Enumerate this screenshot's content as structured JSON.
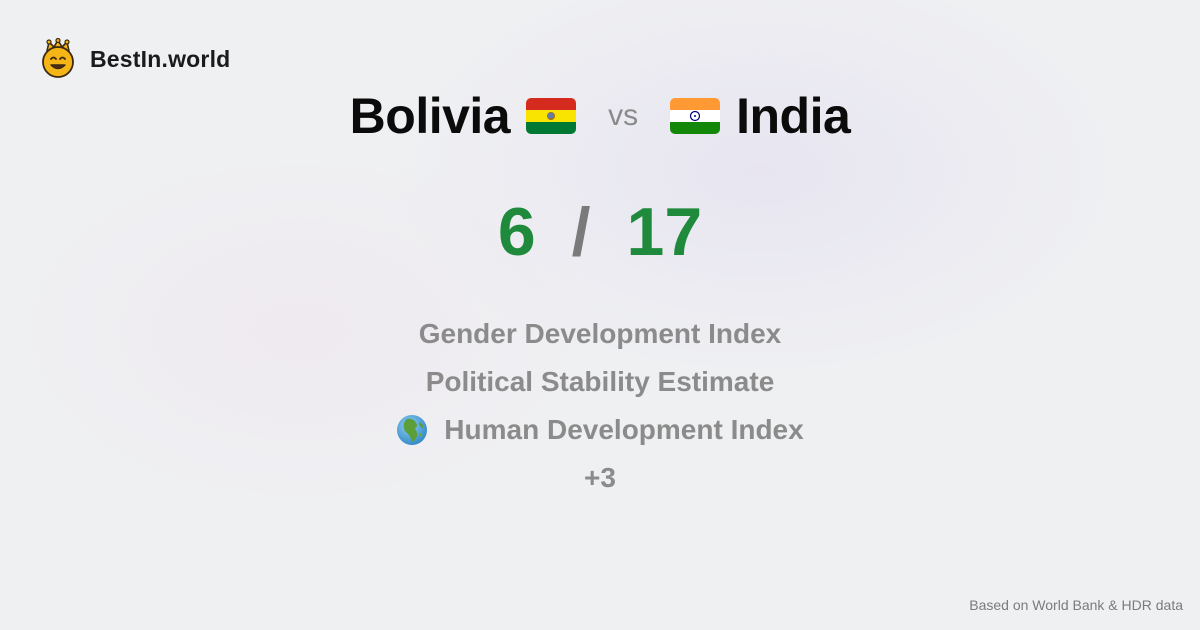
{
  "brand": {
    "name": "BestIn.world",
    "icon": "crowned-smiley-icon"
  },
  "comparison": {
    "left_country": "Bolivia",
    "left_flag": "bolivia-flag-icon",
    "vs_label": "vs",
    "right_country": "India",
    "right_flag": "india-flag-icon"
  },
  "score": {
    "left": "6",
    "separator": "/",
    "right": "17"
  },
  "metrics": {
    "items": [
      {
        "label": "Gender Development Index"
      },
      {
        "label": "Political Stability Estimate"
      },
      {
        "label": "Human Development Index",
        "icon": "globe-africa-icon"
      }
    ],
    "more": "+3"
  },
  "footer": {
    "text": "Based on World Bank & HDR data"
  },
  "colors": {
    "score_green": "#1f8a3c",
    "muted_gray": "#8b8b8b",
    "background": "#eff0f2"
  }
}
